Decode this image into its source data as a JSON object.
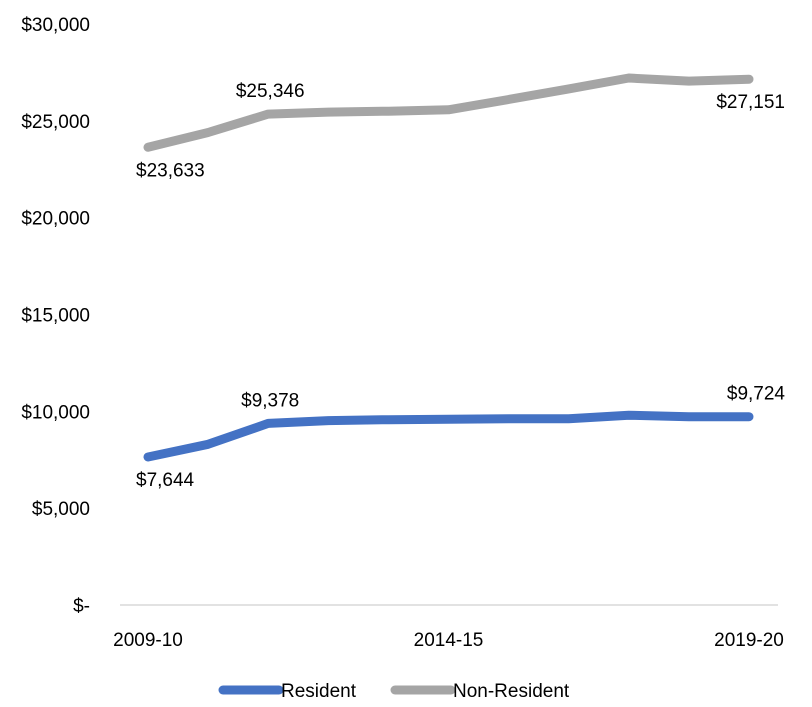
{
  "chart_data": {
    "type": "line",
    "title": "",
    "xlabel": "",
    "ylabel": "",
    "x": [
      "2009-10",
      "2010-11",
      "2011-12",
      "2012-13",
      "2013-14",
      "2014-15",
      "2015-16",
      "2016-17",
      "2017-18",
      "2018-19",
      "2019-20"
    ],
    "x_tick_labels": [
      "2009-10",
      "",
      "",
      "",
      "",
      "2014-15",
      "",
      "",
      "",
      "",
      "2019-20"
    ],
    "ylim": [
      0,
      30000
    ],
    "y_ticks": [
      0,
      5000,
      10000,
      15000,
      20000,
      25000,
      30000
    ],
    "y_tick_labels": [
      "$-",
      "$5,000",
      "$10,000",
      "$15,000",
      "$20,000",
      "$25,000",
      "$30,000"
    ],
    "grid": false,
    "legend_position": "bottom",
    "series": [
      {
        "name": "Resident",
        "color": "#4472C4",
        "values": [
          7644,
          8300,
          9378,
          9520,
          9570,
          9590,
          9620,
          9620,
          9800,
          9724,
          9724
        ],
        "data_labels": [
          {
            "index": 0,
            "text": "$7,644",
            "position": "below"
          },
          {
            "index": 2,
            "text": "$9,378",
            "position": "above"
          },
          {
            "index": 10,
            "text": "$9,724",
            "position": "above"
          }
        ]
      },
      {
        "name": "Non-Resident",
        "color": "#A5A5A5",
        "values": [
          23633,
          24400,
          25346,
          25450,
          25500,
          25570,
          26100,
          26650,
          27210,
          27050,
          27151
        ],
        "data_labels": [
          {
            "index": 0,
            "text": "$23,633",
            "position": "below"
          },
          {
            "index": 2,
            "text": "$25,346",
            "position": "above"
          },
          {
            "index": 10,
            "text": "$27,151",
            "position": "below"
          }
        ]
      }
    ]
  }
}
